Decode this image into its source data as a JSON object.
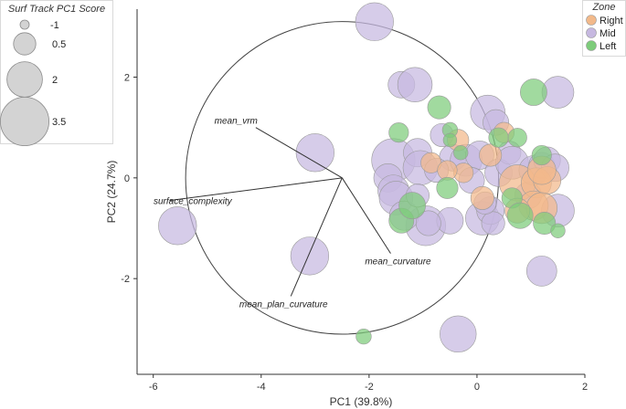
{
  "chart_data": {
    "type": "scatter",
    "subtype": "biplot-bubble",
    "xlabel": "PC1 (39.8%)",
    "ylabel": "PC2 (24.7%)",
    "xlim": [
      -6.3,
      2.0
    ],
    "ylim": [
      -3.9,
      3.35
    ],
    "x_ticks": [
      -6,
      -4,
      -2,
      0,
      2
    ],
    "y_ticks": [
      -2,
      0,
      2
    ],
    "grid": false,
    "correlation_circle": {
      "cx": -2.5,
      "cy": 0.0,
      "r": 2.9
    },
    "loadings": [
      {
        "name": "mean_vrm",
        "x": -4.1,
        "y": 1.0
      },
      {
        "name": "surface_complexity",
        "x": -5.7,
        "y": -0.45
      },
      {
        "name": "mean_plan_curvature",
        "x": -3.45,
        "y": -2.35
      },
      {
        "name": "mean_curvature",
        "x": -1.6,
        "y": -1.5
      }
    ],
    "size_legend": {
      "title": "Surf Track PC1 Score",
      "placement": "top-left",
      "entries": [
        {
          "label": "-1",
          "value": -1
        },
        {
          "label": "0.5",
          "value": 0.5
        },
        {
          "label": "2",
          "value": 2
        },
        {
          "label": "3.5",
          "value": 3.5
        }
      ]
    },
    "color_legend": {
      "title": "Zone",
      "placement": "top-right",
      "entries": [
        {
          "label": "Right",
          "color": "#F2B98A"
        },
        {
          "label": "Mid",
          "color": "#C6B8E0"
        },
        {
          "label": "Left",
          "color": "#7DCC7A"
        }
      ]
    },
    "series": [
      {
        "name": "Mid",
        "color": "#C6B8E0",
        "points": [
          {
            "x": -1.9,
            "y": 3.1,
            "size": 2.3
          },
          {
            "x": -5.55,
            "y": -0.95,
            "size": 2.3
          },
          {
            "x": -3.0,
            "y": 0.5,
            "size": 2.3
          },
          {
            "x": -3.1,
            "y": -1.55,
            "size": 2.3
          },
          {
            "x": -1.4,
            "y": 1.85,
            "size": 1.0
          },
          {
            "x": -1.15,
            "y": 1.85,
            "size": 1.9
          },
          {
            "x": 0.2,
            "y": 1.3,
            "size": 1.9
          },
          {
            "x": 1.5,
            "y": 1.7,
            "size": 1.6
          },
          {
            "x": -1.55,
            "y": 0.35,
            "size": 2.9
          },
          {
            "x": -1.65,
            "y": 0.0,
            "size": 1.2
          },
          {
            "x": -1.55,
            "y": -0.25,
            "size": 1.5
          },
          {
            "x": -1.5,
            "y": -0.4,
            "size": 1.8
          },
          {
            "x": -1.1,
            "y": 0.5,
            "size": 1.2
          },
          {
            "x": -1.05,
            "y": 0.2,
            "size": 1.9
          },
          {
            "x": -0.95,
            "y": -0.95,
            "size": 2.5
          },
          {
            "x": -1.35,
            "y": -0.75,
            "size": 1.3
          },
          {
            "x": -0.5,
            "y": -0.85,
            "size": 1.0
          },
          {
            "x": -0.65,
            "y": 0.85,
            "size": 0.6
          },
          {
            "x": -0.45,
            "y": 0.4,
            "size": 1.0
          },
          {
            "x": -0.2,
            "y": 0.35,
            "size": 1.6
          },
          {
            "x": 0.05,
            "y": 0.45,
            "size": 1.2
          },
          {
            "x": -0.1,
            "y": -0.05,
            "size": 0.9
          },
          {
            "x": 0.1,
            "y": -0.8,
            "size": 1.8
          },
          {
            "x": 0.25,
            "y": -0.65,
            "size": 1.1
          },
          {
            "x": 0.4,
            "y": 0.1,
            "size": 1.1
          },
          {
            "x": 0.6,
            "y": 0.5,
            "size": 0.6
          },
          {
            "x": 0.65,
            "y": 0.3,
            "size": 1.7
          },
          {
            "x": 0.95,
            "y": -0.35,
            "size": 1.0
          },
          {
            "x": 1.05,
            "y": 0.15,
            "size": 1.3
          },
          {
            "x": 1.2,
            "y": 0.25,
            "size": 0.9
          },
          {
            "x": 1.3,
            "y": 0.35,
            "size": 1.0
          },
          {
            "x": 1.45,
            "y": 0.2,
            "size": 1.1
          },
          {
            "x": 1.5,
            "y": -0.65,
            "size": 1.7
          },
          {
            "x": 1.2,
            "y": -1.85,
            "size": 1.4
          },
          {
            "x": 0.35,
            "y": 1.1,
            "size": 0.9
          },
          {
            "x": -0.35,
            "y": -3.1,
            "size": 2.1
          },
          {
            "x": -0.9,
            "y": -0.9,
            "size": 0.8
          },
          {
            "x": 0.3,
            "y": -0.9,
            "size": 0.6
          },
          {
            "x": 0.15,
            "y": -0.5,
            "size": 0.5
          },
          {
            "x": -1.1,
            "y": -0.35,
            "size": 0.6
          },
          {
            "x": -0.75,
            "y": 0.15,
            "size": 0.7
          }
        ]
      },
      {
        "name": "Right",
        "color": "#F2B98A",
        "points": [
          {
            "x": 0.75,
            "y": -0.1,
            "size": 2.1
          },
          {
            "x": 1.1,
            "y": -0.1,
            "size": 1.4
          },
          {
            "x": 1.3,
            "y": -0.05,
            "size": 1.1
          },
          {
            "x": 1.2,
            "y": 0.15,
            "size": 1.2
          },
          {
            "x": 1.05,
            "y": -0.55,
            "size": 1.3
          },
          {
            "x": 1.2,
            "y": -0.6,
            "size": 1.5
          },
          {
            "x": 0.75,
            "y": -0.65,
            "size": 0.8
          },
          {
            "x": 0.1,
            "y": -0.4,
            "size": 0.6
          },
          {
            "x": -0.35,
            "y": 0.75,
            "size": 0.4
          },
          {
            "x": -0.85,
            "y": 0.3,
            "size": 0.3
          },
          {
            "x": 0.25,
            "y": 0.45,
            "size": 0.5
          },
          {
            "x": 0.5,
            "y": 0.9,
            "size": 0.3
          },
          {
            "x": -0.25,
            "y": 0.1,
            "size": 0.2
          },
          {
            "x": -0.55,
            "y": 0.15,
            "size": 0.2
          }
        ]
      },
      {
        "name": "Left",
        "color": "#7DCC7A",
        "points": [
          {
            "x": -0.7,
            "y": 1.4,
            "size": 0.6
          },
          {
            "x": 1.05,
            "y": 1.7,
            "size": 1.0
          },
          {
            "x": -1.45,
            "y": 0.9,
            "size": 0.2
          },
          {
            "x": 0.4,
            "y": 0.8,
            "size": 0.2
          },
          {
            "x": 0.75,
            "y": 0.8,
            "size": 0.1
          },
          {
            "x": -0.5,
            "y": 0.95,
            "size": -0.3
          },
          {
            "x": -0.55,
            "y": -0.2,
            "size": 0.4
          },
          {
            "x": -1.4,
            "y": -0.85,
            "size": 0.8
          },
          {
            "x": -1.2,
            "y": -0.55,
            "size": 1.0
          },
          {
            "x": 0.65,
            "y": -0.4,
            "size": 0.3
          },
          {
            "x": 0.8,
            "y": -0.75,
            "size": 0.9
          },
          {
            "x": 1.25,
            "y": -0.9,
            "size": 0.5
          },
          {
            "x": 1.5,
            "y": -1.05,
            "size": -0.4
          },
          {
            "x": -2.1,
            "y": -3.15,
            "size": -0.3
          },
          {
            "x": 1.2,
            "y": 0.45,
            "size": 0.2
          },
          {
            "x": -0.5,
            "y": 0.75,
            "size": -0.5
          },
          {
            "x": -0.3,
            "y": 0.5,
            "size": -0.4
          }
        ]
      }
    ]
  }
}
